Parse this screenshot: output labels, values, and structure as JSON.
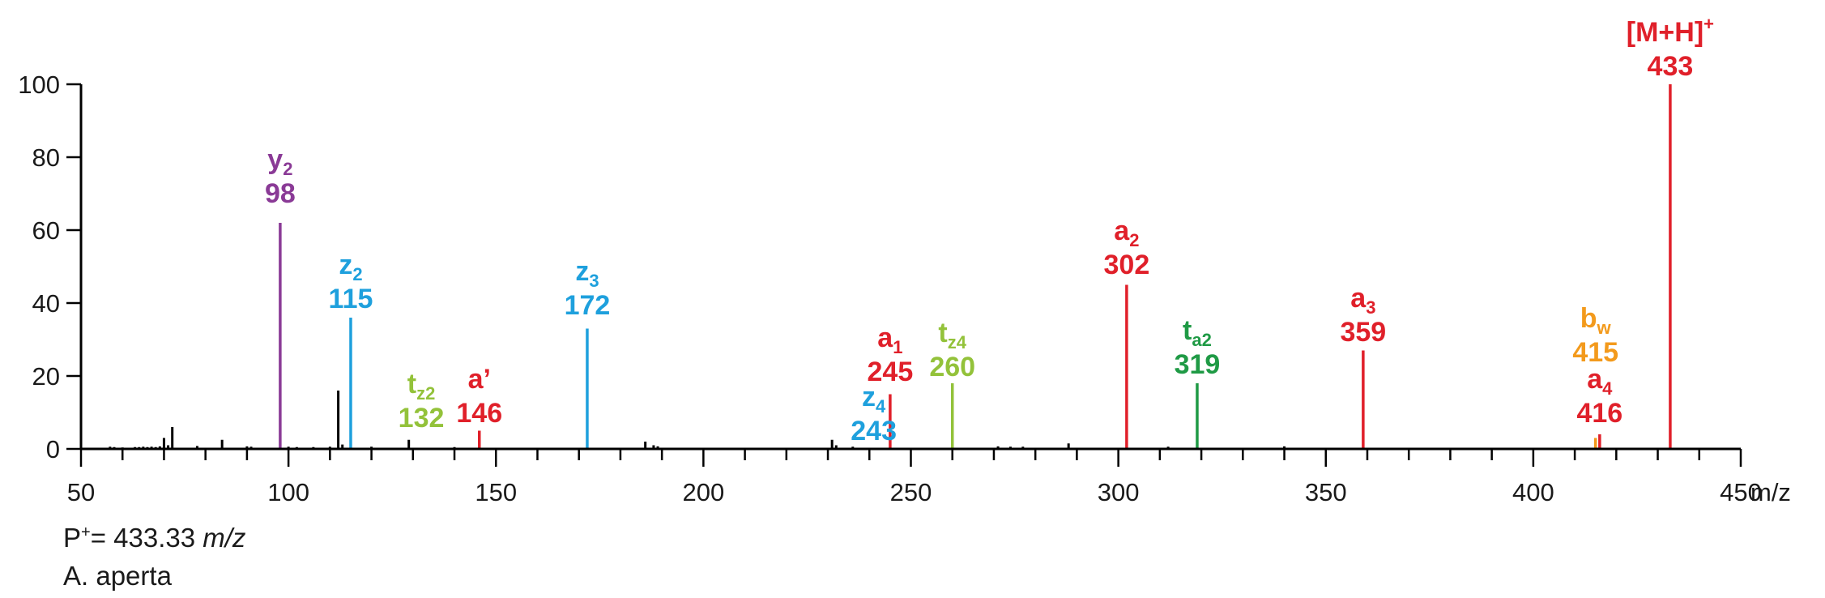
{
  "colors": {
    "axis": "#000000",
    "noise": "#000000",
    "red": "#e0202a",
    "blue": "#1ea0dd",
    "purple": "#8a3a96",
    "lime": "#93c23a",
    "green": "#1f9a45",
    "orange": "#f39a1c"
  },
  "notes": {
    "precursor_prefix": "P",
    "precursor_charge": "+",
    "precursor_value": "= 433.33 ",
    "precursor_unit": "m/z",
    "species": "A. aperta"
  },
  "chart_data": {
    "type": "bar",
    "xlim": [
      50,
      450
    ],
    "ylim": [
      0,
      100
    ],
    "xticks": [
      50,
      100,
      150,
      200,
      250,
      300,
      350,
      400,
      450
    ],
    "yticks": [
      0,
      20,
      40,
      60,
      80,
      100
    ],
    "xunit": "m/z",
    "grid": false,
    "labeled_peaks": [
      {
        "mz": 98,
        "intensity": 62,
        "color": "purple",
        "ion": "y",
        "sub": "2",
        "label": "98"
      },
      {
        "mz": 115,
        "intensity": 36,
        "color": "blue",
        "ion": "z",
        "sub": "2",
        "label": "115"
      },
      {
        "mz": 132,
        "intensity": 0,
        "color": "lime",
        "ion": "t",
        "sub": "z2",
        "label": "132"
      },
      {
        "mz": 146,
        "intensity": 5,
        "color": "red",
        "ion": "a’",
        "sub": "",
        "label": "146"
      },
      {
        "mz": 172,
        "intensity": 33,
        "color": "blue",
        "ion": "z",
        "sub": "3",
        "label": "172"
      },
      {
        "mz": 243,
        "intensity": 0,
        "color": "blue",
        "ion": "z",
        "sub": "4",
        "label": "243"
      },
      {
        "mz": 245,
        "intensity": 15,
        "color": "red",
        "ion": "a",
        "sub": "1",
        "label": "245"
      },
      {
        "mz": 260,
        "intensity": 18,
        "color": "lime",
        "ion": "t",
        "sub": "z4",
        "label": "260"
      },
      {
        "mz": 302,
        "intensity": 45,
        "color": "red",
        "ion": "a",
        "sub": "2",
        "label": "302"
      },
      {
        "mz": 319,
        "intensity": 18,
        "color": "green",
        "ion": "t",
        "sub": "a2",
        "label": "319"
      },
      {
        "mz": 359,
        "intensity": 27,
        "color": "red",
        "ion": "a",
        "sub": "3",
        "label": "359"
      },
      {
        "mz": 415,
        "intensity": 3,
        "color": "orange",
        "ion": "b",
        "sub": "w",
        "label": "415"
      },
      {
        "mz": 416,
        "intensity": 4,
        "color": "red",
        "ion": "a",
        "sub": "4",
        "label": "416"
      },
      {
        "mz": 433,
        "intensity": 100,
        "color": "red",
        "ion": "[M+H]",
        "sup": "+",
        "label": "433"
      }
    ],
    "noise_peaks": [
      {
        "mz": 57,
        "intensity": 0.6
      },
      {
        "mz": 58,
        "intensity": 0.5
      },
      {
        "mz": 60,
        "intensity": 0.4
      },
      {
        "mz": 63,
        "intensity": 0.5
      },
      {
        "mz": 64,
        "intensity": 0.5
      },
      {
        "mz": 65,
        "intensity": 0.6
      },
      {
        "mz": 66,
        "intensity": 0.5
      },
      {
        "mz": 67,
        "intensity": 0.6
      },
      {
        "mz": 68,
        "intensity": 0.5
      },
      {
        "mz": 69,
        "intensity": 0.7
      },
      {
        "mz": 70,
        "intensity": 3
      },
      {
        "mz": 71,
        "intensity": 1
      },
      {
        "mz": 72,
        "intensity": 6
      },
      {
        "mz": 78,
        "intensity": 0.8
      },
      {
        "mz": 84,
        "intensity": 2.5
      },
      {
        "mz": 90,
        "intensity": 0.7
      },
      {
        "mz": 91,
        "intensity": 0.6
      },
      {
        "mz": 100,
        "intensity": 0.6
      },
      {
        "mz": 102,
        "intensity": 0.5
      },
      {
        "mz": 106,
        "intensity": 0.5
      },
      {
        "mz": 110,
        "intensity": 0.6
      },
      {
        "mz": 112,
        "intensity": 16
      },
      {
        "mz": 113,
        "intensity": 1.2
      },
      {
        "mz": 120,
        "intensity": 0.6
      },
      {
        "mz": 129,
        "intensity": 2.5
      },
      {
        "mz": 140,
        "intensity": 0.5
      },
      {
        "mz": 186,
        "intensity": 2
      },
      {
        "mz": 188,
        "intensity": 1
      },
      {
        "mz": 189,
        "intensity": 0.7
      },
      {
        "mz": 231,
        "intensity": 2.5
      },
      {
        "mz": 232,
        "intensity": 1
      },
      {
        "mz": 236,
        "intensity": 0.6
      },
      {
        "mz": 271,
        "intensity": 0.7
      },
      {
        "mz": 274,
        "intensity": 0.6
      },
      {
        "mz": 277,
        "intensity": 0.6
      },
      {
        "mz": 288,
        "intensity": 1.5
      },
      {
        "mz": 312,
        "intensity": 0.6
      },
      {
        "mz": 340,
        "intensity": 0.7
      }
    ]
  }
}
